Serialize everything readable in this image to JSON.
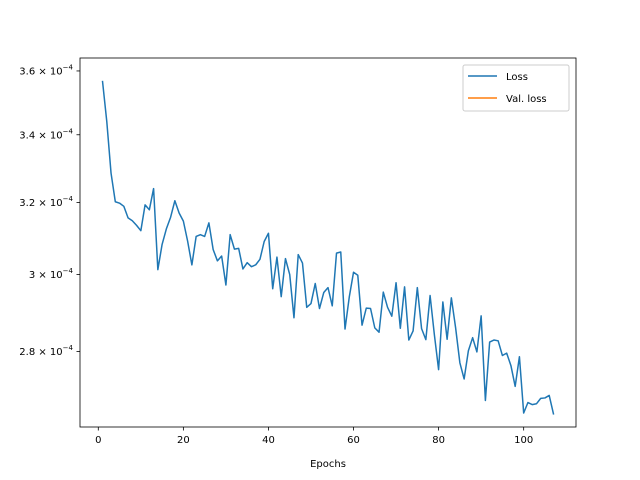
{
  "chart_data": {
    "type": "line",
    "title": "",
    "xlabel": "Epochs",
    "ylabel": "",
    "xlim": [
      -4.3,
      112.3
    ],
    "ylim": [
      0.0002617,
      0.0003642
    ],
    "xticks": [
      0,
      20,
      40,
      60,
      80,
      100
    ],
    "xtick_labels": [
      "0",
      "20",
      "40",
      "60",
      "80",
      "100"
    ],
    "yticks": [
      0.00028,
      0.0003,
      0.00032,
      0.00034,
      0.00036
    ],
    "ytick_labels": [
      {
        "mantissa": "2.8",
        "times": " × 10",
        "exp": "−4"
      },
      {
        "mantissa": "3",
        "times": " × 10",
        "exp": "−4"
      },
      {
        "mantissa": "3.2",
        "times": " × 10",
        "exp": "−4"
      },
      {
        "mantissa": "3.4",
        "times": " × 10",
        "exp": "−4"
      },
      {
        "mantissa": "3.6",
        "times": " × 10",
        "exp": "−4"
      }
    ],
    "y_scale": "log",
    "grid": false,
    "legend_position": "upper right",
    "series": [
      {
        "name": "Loss",
        "color": "#1f77b4",
        "x": [
          1,
          2,
          3,
          4,
          5,
          6,
          7,
          8,
          9,
          10,
          11,
          12,
          13,
          14,
          15,
          16,
          17,
          18,
          19,
          20,
          21,
          22,
          23,
          24,
          25,
          26,
          27,
          28,
          29,
          30,
          31,
          32,
          33,
          34,
          35,
          36,
          37,
          38,
          39,
          40,
          41,
          42,
          43,
          44,
          45,
          46,
          47,
          48,
          49,
          50,
          51,
          52,
          53,
          54,
          55,
          56,
          57,
          58,
          59,
          60,
          61,
          62,
          63,
          64,
          65,
          66,
          67,
          68,
          69,
          70,
          71,
          72,
          73,
          74,
          75,
          76,
          77,
          78,
          79,
          80,
          81,
          82,
          83,
          84,
          85,
          86,
          87,
          88,
          89,
          90,
          91,
          92,
          93,
          94,
          95,
          96,
          97,
          98,
          99,
          100,
          101,
          102,
          103,
          104,
          105,
          106,
          107
        ],
        "values": [
          0.0003566,
          0.000344,
          0.0003285,
          0.0003202,
          0.0003198,
          0.0003189,
          0.0003156,
          0.0003148,
          0.0003135,
          0.000312,
          0.0003193,
          0.0003179,
          0.000324,
          0.0003013,
          0.0003082,
          0.0003125,
          0.0003158,
          0.0003205,
          0.000317,
          0.0003147,
          0.0003091,
          0.0003026,
          0.0003104,
          0.0003109,
          0.0003104,
          0.0003142,
          0.0003068,
          0.0003037,
          0.000305,
          0.0002972,
          0.0003109,
          0.0003069,
          0.0003071,
          0.0003015,
          0.0003032,
          0.0003021,
          0.0003026,
          0.0003041,
          0.000309,
          0.0003113,
          0.0002962,
          0.0003047,
          0.0002941,
          0.0003043,
          0.0003,
          0.0002886,
          0.0003054,
          0.0003031,
          0.0002913,
          0.0002923,
          0.0002976,
          0.000291,
          0.0002952,
          0.0002965,
          0.0002917,
          0.0003058,
          0.0003061,
          0.0002857,
          0.000294,
          0.0003006,
          0.0002998,
          0.0002867,
          0.0002911,
          0.000291,
          0.000286,
          0.0002849,
          0.0002953,
          0.0002913,
          0.000289,
          0.0002978,
          0.0002859,
          0.0002967,
          0.0002829,
          0.0002852,
          0.0002965,
          0.0002858,
          0.000283,
          0.0002944,
          0.0002843,
          0.0002755,
          0.0002927,
          0.0002831,
          0.0002938,
          0.000286,
          0.0002772,
          0.0002732,
          0.0002802,
          0.0002835,
          0.0002799,
          0.0002891,
          0.000268,
          0.0002824,
          0.0002829,
          0.0002827,
          0.000279,
          0.0002796,
          0.0002765,
          0.0002714,
          0.0002787,
          0.000265,
          0.0002675,
          0.000267,
          0.0002672,
          0.0002685,
          0.0002686,
          0.0002692,
          0.0002648
        ]
      },
      {
        "name": "Val. loss",
        "color": "#ff7f0e",
        "x": [],
        "values": []
      }
    ]
  }
}
